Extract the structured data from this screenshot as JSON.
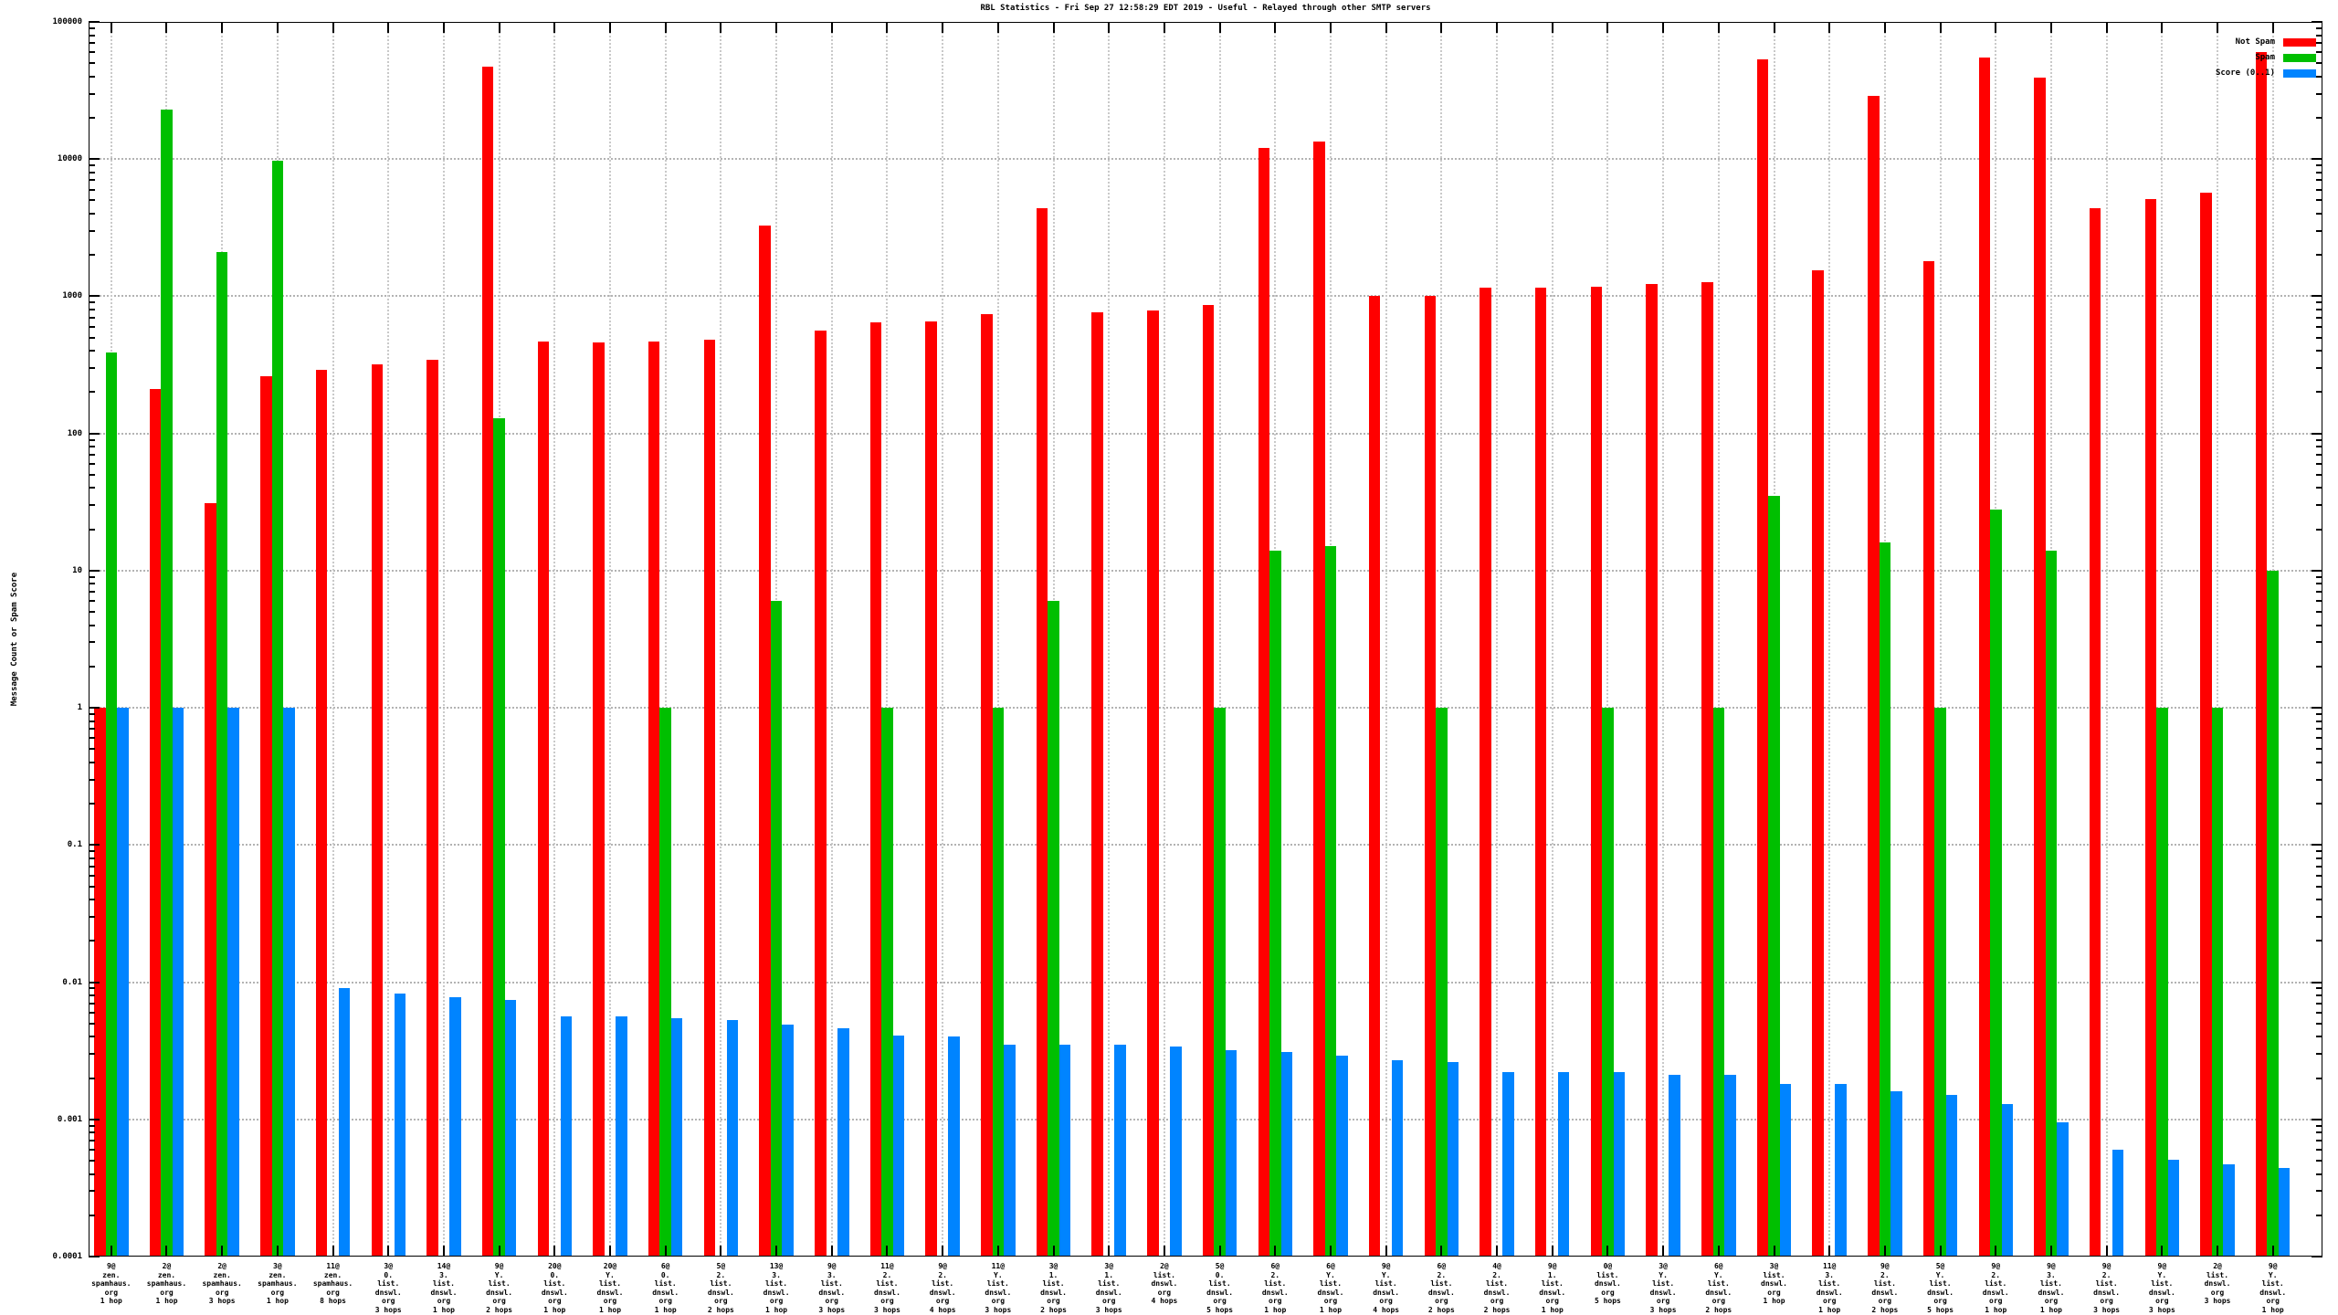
{
  "title": "RBL Statistics - Fri Sep 27 12:58:29 EDT 2019 - Useful - Relayed through other SMTP servers",
  "y_axis_title": "Message Count or Spam Score",
  "legend": [
    {
      "label": "Not Spam",
      "color": "#ff0000"
    },
    {
      "label": "Spam",
      "color": "#00bf00"
    },
    {
      "label": "Score (0..1)",
      "color": "#0084ff"
    }
  ],
  "colors": {
    "background": "#ffffff",
    "axis": "#000000",
    "grid": "#b3b3b3",
    "not_spam": "#ff0000",
    "spam": "#00bf00",
    "score": "#0084ff"
  },
  "chart_data": {
    "type": "bar",
    "y_scale": "log",
    "ylim": [
      0.0001,
      100000
    ],
    "grid": true,
    "legend_position": "top-right",
    "title": "RBL Statistics - Fri Sep 27 12:58:29 EDT 2019 - Useful - Relayed through other SMTP servers",
    "ylabel": "Message Count or Spam Score",
    "y_ticks": [
      "100000",
      "10000",
      "1000",
      "100",
      "10",
      "1",
      "0.1",
      "0.01",
      "0.001",
      "0.0001"
    ],
    "categories": [
      [
        "9@",
        "zen.",
        "spamhaus.",
        "org",
        "1 hop"
      ],
      [
        "2@",
        "zen.",
        "spamhaus.",
        "org",
        "1 hop"
      ],
      [
        "2@",
        "zen.",
        "spamhaus.",
        "org",
        "3 hops"
      ],
      [
        "3@",
        "zen.",
        "spamhaus.",
        "org",
        "1 hop"
      ],
      [
        "11@",
        "zen.",
        "spamhaus.",
        "org",
        "8 hops"
      ],
      [
        "3@",
        "0.",
        "list.",
        "dnswl.",
        "org",
        "3 hops"
      ],
      [
        "14@",
        "3.",
        "list.",
        "dnswl.",
        "org",
        "1 hop"
      ],
      [
        "9@",
        "Y.",
        "list.",
        "dnswl.",
        "org",
        "2 hops"
      ],
      [
        "20@",
        "0.",
        "list.",
        "dnswl.",
        "org",
        "1 hop"
      ],
      [
        "20@",
        "Y.",
        "list.",
        "dnswl.",
        "org",
        "1 hop"
      ],
      [
        "6@",
        "0.",
        "list.",
        "dnswl.",
        "org",
        "1 hop"
      ],
      [
        "5@",
        "2.",
        "list.",
        "dnswl.",
        "org",
        "2 hops"
      ],
      [
        "13@",
        "3.",
        "list.",
        "dnswl.",
        "org",
        "1 hop"
      ],
      [
        "9@",
        "3.",
        "list.",
        "dnswl.",
        "org",
        "3 hops"
      ],
      [
        "11@",
        "2.",
        "list.",
        "dnswl.",
        "org",
        "3 hops"
      ],
      [
        "9@",
        "2.",
        "list.",
        "dnswl.",
        "org",
        "4 hops"
      ],
      [
        "11@",
        "Y.",
        "list.",
        "dnswl.",
        "org",
        "3 hops"
      ],
      [
        "3@",
        "1.",
        "list.",
        "dnswl.",
        "org",
        "2 hops"
      ],
      [
        "3@",
        "1.",
        "list.",
        "dnswl.",
        "org",
        "3 hops"
      ],
      [
        "2@",
        "list.",
        "dnswl.",
        "org",
        "4 hops"
      ],
      [
        "5@",
        "0.",
        "list.",
        "dnswl.",
        "org",
        "5 hops"
      ],
      [
        "6@",
        "2.",
        "list.",
        "dnswl.",
        "org",
        "1 hop"
      ],
      [
        "6@",
        "Y.",
        "list.",
        "dnswl.",
        "org",
        "1 hop"
      ],
      [
        "9@",
        "Y.",
        "list.",
        "dnswl.",
        "org",
        "4 hops"
      ],
      [
        "6@",
        "2.",
        "list.",
        "dnswl.",
        "org",
        "2 hops"
      ],
      [
        "4@",
        "2.",
        "list.",
        "dnswl.",
        "org",
        "2 hops"
      ],
      [
        "9@",
        "1.",
        "list.",
        "dnswl.",
        "org",
        "1 hop"
      ],
      [
        "0@",
        "list.",
        "dnswl.",
        "org",
        "5 hops"
      ],
      [
        "3@",
        "Y.",
        "list.",
        "dnswl.",
        "org",
        "3 hops"
      ],
      [
        "6@",
        "Y.",
        "list.",
        "dnswl.",
        "org",
        "2 hops"
      ],
      [
        "3@",
        "list.",
        "dnswl.",
        "org",
        "1 hop"
      ],
      [
        "11@",
        "3.",
        "list.",
        "dnswl.",
        "org",
        "1 hop"
      ],
      [
        "9@",
        "2.",
        "list.",
        "dnswl.",
        "org",
        "2 hops"
      ],
      [
        "5@",
        "Y.",
        "list.",
        "dnswl.",
        "org",
        "5 hops"
      ],
      [
        "9@",
        "2.",
        "list.",
        "dnswl.",
        "org",
        "1 hop"
      ],
      [
        "9@",
        "3.",
        "list.",
        "dnswl.",
        "org",
        "1 hop"
      ],
      [
        "9@",
        "2.",
        "list.",
        "dnswl.",
        "org",
        "3 hops"
      ],
      [
        "9@",
        "Y.",
        "list.",
        "dnswl.",
        "org",
        "3 hops"
      ],
      [
        "2@",
        "list.",
        "dnswl.",
        "org",
        "3 hops"
      ],
      [
        "9@",
        "Y.",
        "list.",
        "dnswl.",
        "org",
        "1 hop"
      ]
    ],
    "series": [
      {
        "name": "Not Spam",
        "color": "#ff0000",
        "values": [
          1,
          210,
          31,
          260,
          290,
          320,
          345,
          47000,
          465,
          460,
          470,
          480,
          3300,
          565,
          650,
          655,
          740,
          4400,
          760,
          790,
          870,
          12000,
          13500,
          1000,
          1010,
          1150,
          1160,
          1170,
          1230,
          1260,
          53000,
          1550,
          29000,
          1800,
          55000,
          39000,
          4400,
          5100,
          5650,
          60000
        ]
      },
      {
        "name": "Spam",
        "color": "#00bf00",
        "values": [
          390,
          23000,
          2100,
          9700,
          null,
          null,
          null,
          130,
          null,
          null,
          1,
          null,
          6,
          null,
          1,
          null,
          1,
          6,
          null,
          null,
          1,
          14,
          15,
          null,
          1,
          null,
          null,
          1,
          null,
          1,
          35,
          null,
          16,
          1,
          28,
          14,
          null,
          1,
          1,
          10
        ]
      },
      {
        "name": "Score (0..1)",
        "color": "#0084ff",
        "values": [
          1,
          1,
          1,
          1,
          0.009,
          0.0083,
          0.0078,
          0.0074,
          0.0056,
          0.0056,
          0.0055,
          0.0053,
          0.0049,
          0.0046,
          0.0041,
          0.004,
          0.0035,
          0.0035,
          0.0035,
          0.0034,
          0.0032,
          0.0031,
          0.0029,
          0.0027,
          0.0026,
          0.0022,
          0.0022,
          0.0022,
          0.0021,
          0.0021,
          0.0018,
          0.0018,
          0.0016,
          0.0015,
          0.0013,
          0.00095,
          0.0006,
          0.00051,
          0.00047,
          0.00044
        ]
      }
    ]
  }
}
